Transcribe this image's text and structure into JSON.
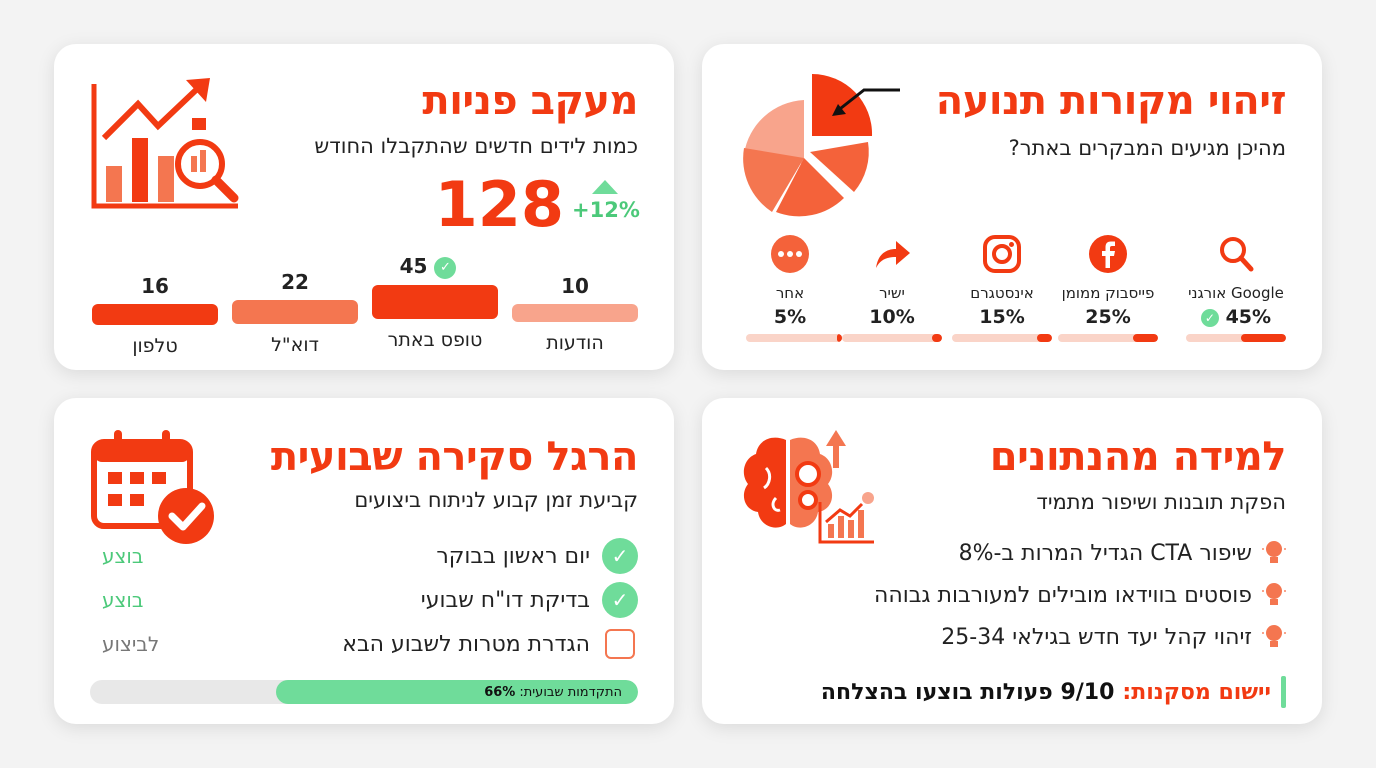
{
  "traffic": {
    "title": "זיהוי מקורות תנועה",
    "subtitle": "מהיכן מגיעים המבקרים באתר?",
    "sources": [
      {
        "name": "Google אורגני",
        "pct": "45%",
        "value": 45,
        "icon": "search-icon",
        "check": true
      },
      {
        "name": "פייסבוק ממומן",
        "pct": "25%",
        "value": 25,
        "icon": "facebook-icon",
        "check": false
      },
      {
        "name": "אינסטגרם",
        "pct": "15%",
        "value": 15,
        "icon": "instagram-icon",
        "check": false
      },
      {
        "name": "ישיר",
        "pct": "10%",
        "value": 10,
        "icon": "share-arrow-icon",
        "check": false
      },
      {
        "name": "אחר",
        "pct": "5%",
        "value": 5,
        "icon": "more-dots-icon",
        "check": false
      }
    ]
  },
  "leads": {
    "title": "מעקב פניות",
    "subtitle": "כמות לידים חדשים שהתקבלו החודש",
    "total": "128",
    "change": "+12%",
    "channels": [
      {
        "label": "הודעות",
        "value_text": "10",
        "value": 10,
        "color": "#f8a48c"
      },
      {
        "label": "טופס באתר",
        "value_text": "45",
        "value": 45,
        "color": "#f23a12",
        "check": true
      },
      {
        "label": "דוא\"ל",
        "value_text": "22",
        "value": 22,
        "color": "#f47650"
      },
      {
        "label": "טלפון",
        "value_text": "16",
        "value": 16,
        "color": "#f23a12"
      }
    ]
  },
  "learning": {
    "title": "למידה מהנתונים",
    "subtitle": "הפקת תובנות ושיפור מתמיד",
    "insights": [
      "שיפור CTA הגדיל המרות ב-8%",
      "פוסטים בווידאו מובילים למעורבות גבוהה",
      "זיהוי קהל יעד חדש בגילאי 25-34"
    ],
    "conclusion_label": "יישום מסקנות:",
    "conclusion_text": "9/10 פעולות בוצעו בהצלחה"
  },
  "habit": {
    "title": "הרגל סקירה שבועית",
    "subtitle": "קביעת זמן קבוע לניתוח ביצועים",
    "tasks": [
      {
        "text": "יום ראשון בבוקר",
        "status": "בוצע",
        "done": true
      },
      {
        "text": "בדיקת דו\"ח שבועי",
        "status": "בוצע",
        "done": true
      },
      {
        "text": "הגדרת מטרות לשבוע הבא",
        "status": "לביצוע",
        "done": false
      }
    ],
    "progress_label": "התקדמות שבועית:",
    "progress_value": "66%",
    "progress": 0.66
  },
  "colors": {
    "accent": "#f23a12",
    "green": "#6fdc9a",
    "green_text": "#4cc97a",
    "light": "#fad4c8"
  }
}
